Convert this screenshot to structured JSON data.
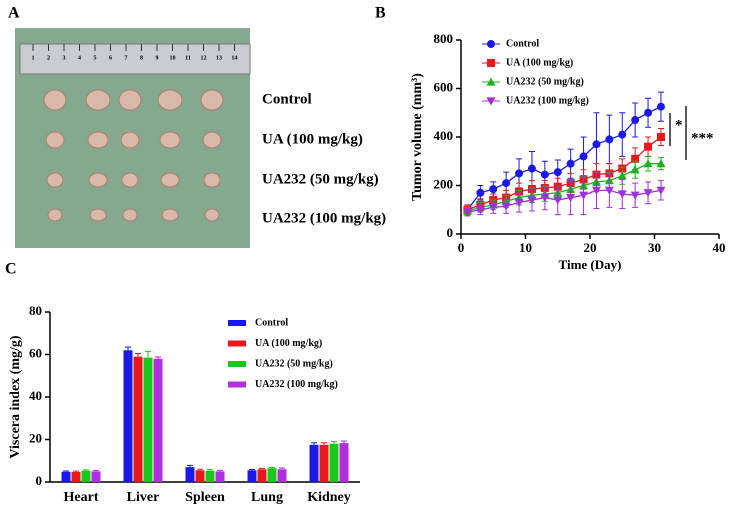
{
  "panel_a": {
    "panel": "A",
    "ruler_labels": [
      "1",
      "2",
      "3",
      "4",
      "5",
      "6",
      "7",
      "8",
      "9",
      "10",
      "11",
      "12",
      "13",
      "14"
    ],
    "group_labels": [
      "Control",
      "UA (100 mg/kg)",
      "UA232 (50 mg/kg)",
      "UA232 (100 mg/kg)"
    ]
  },
  "chart_data": [
    {
      "type": "line",
      "panel": "B",
      "x_label": "Time (Day)",
      "y_label": "Tumor volume (mm³)",
      "x": [
        1,
        3,
        5,
        7,
        9,
        11,
        13,
        15,
        17,
        19,
        21,
        23,
        25,
        27,
        29,
        31
      ],
      "series": [
        {
          "name": "Control",
          "color": "#1a1ae6",
          "marker": "circle",
          "values": [
            100,
            170,
            185,
            210,
            250,
            270,
            245,
            255,
            290,
            320,
            370,
            390,
            410,
            470,
            500,
            525
          ],
          "errors": [
            20,
            30,
            30,
            45,
            60,
            70,
            55,
            50,
            60,
            80,
            130,
            100,
            90,
            70,
            60,
            60
          ]
        },
        {
          "name": "UA (100 mg/kg)",
          "color": "#e61a1a",
          "marker": "square",
          "values": [
            100,
            120,
            140,
            150,
            175,
            185,
            190,
            195,
            210,
            225,
            245,
            250,
            270,
            310,
            360,
            400
          ],
          "errors": [
            20,
            25,
            25,
            30,
            35,
            35,
            30,
            35,
            40,
            40,
            45,
            40,
            40,
            45,
            40,
            35
          ]
        },
        {
          "name": "UA232 (50 mg/kg)",
          "color": "#1ab41a",
          "marker": "triangle",
          "values": [
            95,
            110,
            120,
            135,
            150,
            160,
            165,
            170,
            185,
            200,
            215,
            220,
            240,
            265,
            290,
            290
          ],
          "errors": [
            15,
            20,
            20,
            25,
            30,
            30,
            30,
            30,
            35,
            35,
            40,
            35,
            35,
            35,
            30,
            25
          ]
        },
        {
          "name": "UA232 (100 mg/kg)",
          "color": "#a030e0",
          "marker": "down-triangle",
          "values": [
            90,
            100,
            110,
            115,
            130,
            140,
            150,
            140,
            150,
            160,
            180,
            180,
            165,
            160,
            170,
            180
          ],
          "errors": [
            15,
            20,
            25,
            30,
            40,
            45,
            50,
            60,
            70,
            80,
            75,
            70,
            60,
            50,
            45,
            40
          ]
        }
      ],
      "xlim": [
        0,
        40
      ],
      "xticks": [
        0,
        10,
        20,
        30,
        40
      ],
      "ylim": [
        0,
        800
      ],
      "yticks": [
        0,
        200,
        400,
        600,
        800
      ],
      "annotations": [
        "*",
        "***"
      ]
    },
    {
      "type": "bar",
      "panel": "C",
      "y_label": "Viscera index (mg/g)",
      "categories": [
        "Heart",
        "Liver",
        "Spleen",
        "Lung",
        "Kidney"
      ],
      "series": [
        {
          "name": "Control",
          "color": "#1a1ae6",
          "values": [
            4.8,
            62,
            7,
            5.5,
            17.5
          ],
          "errors": [
            0.4,
            1.5,
            0.8,
            0.4,
            1
          ]
        },
        {
          "name": "UA (100 mg/kg)",
          "color": "#e61a1a",
          "values": [
            4.7,
            59,
            5.5,
            6,
            17.5
          ],
          "errors": [
            0.4,
            1.5,
            0.5,
            0.4,
            1
          ]
        },
        {
          "name": "UA232 (50 mg/kg)",
          "color": "#1ac81a",
          "values": [
            5.3,
            58.5,
            5.3,
            6.5,
            18
          ],
          "errors": [
            0.4,
            3,
            0.5,
            0.4,
            1
          ]
        },
        {
          "name": "UA232 (100 mg/kg)",
          "color": "#b030e0",
          "values": [
            5,
            58,
            5,
            6,
            18.3
          ],
          "errors": [
            0.4,
            0.8,
            0.5,
            0.6,
            1
          ]
        }
      ],
      "ylim": [
        0,
        80
      ],
      "yticks": [
        0,
        20,
        40,
        60,
        80
      ]
    }
  ]
}
